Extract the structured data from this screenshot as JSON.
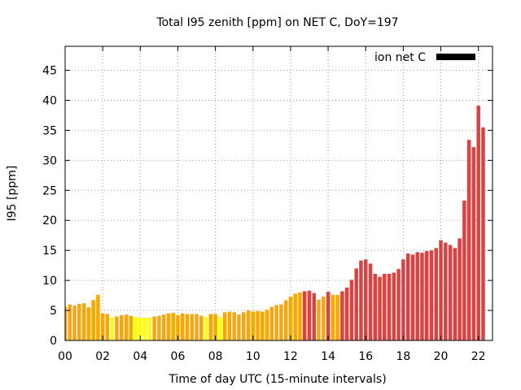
{
  "chart_data": {
    "type": "bar",
    "title": "Total I95 zenith [ppm] on NET C, DoY=197",
    "xlabel": "Time of day UTC (15-minute intervals)",
    "ylabel": "I95 [ppm]",
    "legend": {
      "label": "ion net C",
      "color": "#000000",
      "placement": "top-right"
    },
    "x_tick_labels": [
      "00",
      "02",
      "04",
      "06",
      "08",
      "10",
      "12",
      "14",
      "16",
      "18",
      "20",
      "22"
    ],
    "y_tick_labels": [
      "0",
      "5",
      "10",
      "15",
      "20",
      "25",
      "30",
      "35",
      "40",
      "45"
    ],
    "xlim": [
      0,
      22.75
    ],
    "ylim": [
      0,
      49
    ],
    "grid": true,
    "interval_hours": 0.25,
    "colors": {
      "low": "#ffff00",
      "mid": "#ffa500",
      "high": "#e04040"
    },
    "values": [
      5.6,
      6.0,
      5.8,
      6.1,
      6.2,
      5.5,
      6.7,
      7.6,
      4.5,
      4.4,
      3.9,
      4.0,
      4.2,
      4.3,
      4.1,
      3.9,
      3.8,
      3.8,
      3.8,
      4.0,
      4.1,
      4.3,
      4.5,
      4.6,
      4.2,
      4.5,
      4.4,
      4.4,
      4.4,
      4.1,
      3.9,
      4.4,
      4.4,
      3.9,
      4.7,
      4.8,
      4.7,
      4.3,
      4.7,
      5.0,
      4.8,
      4.9,
      4.8,
      5.1,
      5.6,
      5.9,
      6.0,
      6.7,
      7.3,
      7.8,
      8.0,
      8.2,
      8.3,
      7.9,
      6.8,
      7.3,
      8.1,
      7.6,
      7.6,
      8.2,
      8.8,
      10.1,
      12.0,
      13.3,
      13.5,
      12.8,
      11.1,
      10.6,
      11.1,
      11.1,
      11.3,
      11.9,
      13.5,
      14.5,
      14.3,
      14.7,
      14.6,
      14.9,
      15.0,
      15.4,
      16.7,
      16.3,
      15.9,
      15.4,
      17.0,
      23.3,
      33.4,
      32.2,
      39.1,
      35.5
    ],
    "color_class": [
      "mid",
      "mid",
      "mid",
      "mid",
      "mid",
      "mid",
      "mid",
      "mid",
      "mid",
      "mid",
      "low",
      "mid",
      "mid",
      "mid",
      "mid",
      "low",
      "low",
      "low",
      "low",
      "mid",
      "mid",
      "mid",
      "mid",
      "mid",
      "mid",
      "mid",
      "mid",
      "mid",
      "mid",
      "mid",
      "low",
      "mid",
      "mid",
      "low",
      "mid",
      "mid",
      "mid",
      "mid",
      "mid",
      "mid",
      "mid",
      "mid",
      "mid",
      "mid",
      "mid",
      "mid",
      "mid",
      "mid",
      "mid",
      "mid",
      "mid",
      "high",
      "high",
      "high",
      "mid",
      "mid",
      "high",
      "mid",
      "mid",
      "high",
      "high",
      "high",
      "high",
      "high",
      "high",
      "high",
      "high",
      "high",
      "high",
      "high",
      "high",
      "high",
      "high",
      "high",
      "high",
      "high",
      "high",
      "high",
      "high",
      "high",
      "high",
      "high",
      "high",
      "high",
      "high",
      "high",
      "high",
      "high",
      "high",
      "high"
    ]
  }
}
